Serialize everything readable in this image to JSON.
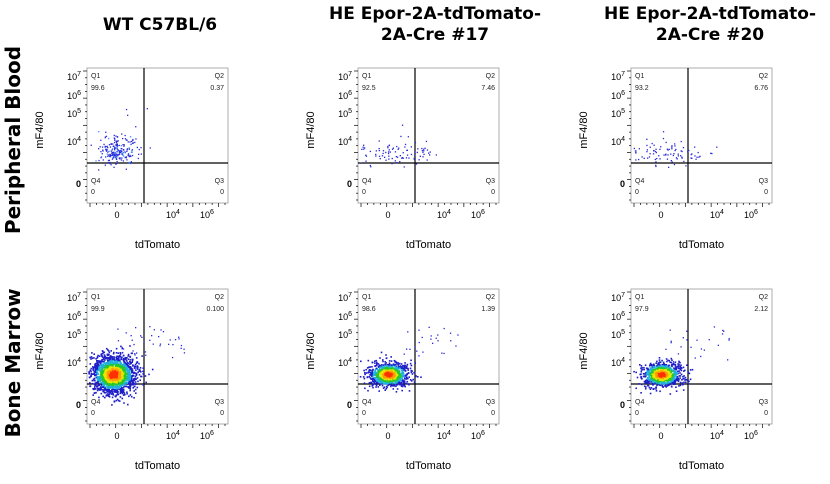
{
  "columns": [
    "WT C57BL/6",
    "HE Epor-2A-tdTomato-\n2A-Cre #17",
    "HE Epor-2A-tdTomato-\n2A-Cre #20"
  ],
  "rows": [
    "Peripheral Blood",
    "Bone Marrow"
  ],
  "chart_data": {
    "type": "scatter",
    "xlabel": "tdTomato",
    "ylabel": "mF4/80",
    "x_ticks": [
      "0",
      "10^4",
      "10^6"
    ],
    "y_ticks": [
      "10^7",
      "10^6",
      "10^5",
      "10^4",
      "0"
    ],
    "quadrant_labels": [
      "Q1",
      "Q2",
      "Q3",
      "Q4"
    ],
    "panels": [
      {
        "column": "WT C57BL/6",
        "row": "Peripheral Blood",
        "quadrants": {
          "Q1": "99.6",
          "Q2": "0.37",
          "Q3": "0",
          "Q4": "0"
        },
        "density": "sparse"
      },
      {
        "column": "HE Epor-2A-tdTomato-2A-Cre #17",
        "row": "Peripheral Blood",
        "quadrants": {
          "Q1": "92.5",
          "Q2": "7.46",
          "Q3": "0",
          "Q4": "0"
        },
        "density": "very sparse"
      },
      {
        "column": "HE Epor-2A-tdTomato-2A-Cre #20",
        "row": "Peripheral Blood",
        "quadrants": {
          "Q1": "93.2",
          "Q2": "6.76",
          "Q3": "0",
          "Q4": "0"
        },
        "density": "very sparse"
      },
      {
        "column": "WT C57BL/6",
        "row": "Bone Marrow",
        "quadrants": {
          "Q1": "99.9",
          "Q2": "0.100",
          "Q3": "0",
          "Q4": "0"
        },
        "density": "dense"
      },
      {
        "column": "HE Epor-2A-tdTomato-2A-Cre #17",
        "row": "Bone Marrow",
        "quadrants": {
          "Q1": "98.6",
          "Q2": "1.39",
          "Q3": "0",
          "Q4": "0"
        },
        "density": "medium"
      },
      {
        "column": "HE Epor-2A-tdTomato-2A-Cre #20",
        "row": "Bone Marrow",
        "quadrants": {
          "Q1": "97.9",
          "Q2": "2.12",
          "Q3": "0",
          "Q4": "0"
        },
        "density": "medium"
      }
    ]
  }
}
